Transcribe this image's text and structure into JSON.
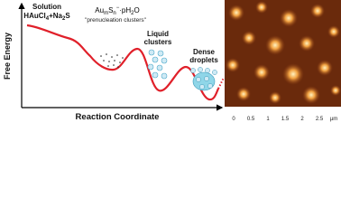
{
  "axes": {
    "y_label": "Free Energy",
    "x_label": "Reaction Coordinate"
  },
  "stages": {
    "solution": {
      "title": "Solution",
      "formula": [
        "HAuCl",
        "4",
        "+Na",
        "2",
        "S"
      ]
    },
    "prenucleation": {
      "formula": [
        "Au",
        "m",
        "S",
        "n",
        "−",
        "·pH",
        "2",
        "O"
      ],
      "caption": "\"prenucleation clusters\""
    },
    "liquid": {
      "lines": [
        "Liquid",
        "clusters"
      ]
    },
    "dense": {
      "lines": [
        "Dense",
        "droplets"
      ]
    }
  },
  "afm": {
    "ticks": [
      "0",
      "0.5",
      "1",
      "1.5",
      "2",
      "2.5"
    ],
    "unit": "µm"
  }
}
